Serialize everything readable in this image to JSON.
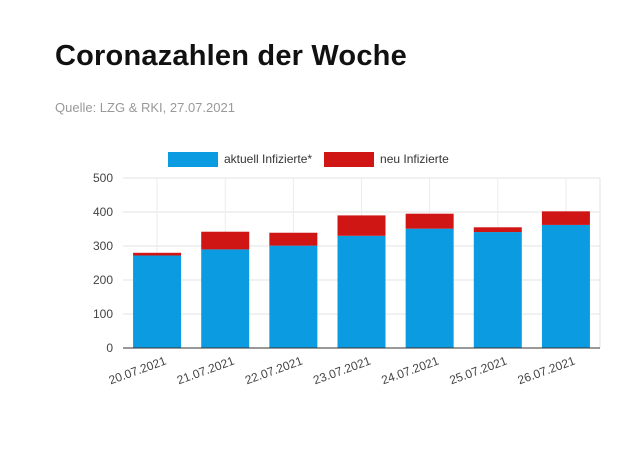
{
  "header": {
    "title": "Coronazahlen der Woche",
    "source": "Quelle: LZG & RKI, 27.07.2021"
  },
  "chart_data": {
    "type": "bar",
    "stacked": true,
    "categories": [
      "20.07.2021",
      "21.07.2021",
      "22.07.2021",
      "23.07.2021",
      "24.07.2021",
      "25.07.2021",
      "26.07.2021"
    ],
    "series": [
      {
        "name": "aktuell Infizierte*",
        "color": "#0b9be0",
        "values": [
          272,
          290,
          301,
          330,
          351,
          341,
          362
        ]
      },
      {
        "name": "neu Infizierte",
        "color": "#d01515",
        "values": [
          8,
          52,
          38,
          60,
          44,
          14,
          40
        ]
      }
    ],
    "ylim": [
      0,
      500
    ],
    "yticks": [
      "0",
      "100",
      "200",
      "300",
      "400",
      "500"
    ],
    "grid": true,
    "legend": "top"
  }
}
